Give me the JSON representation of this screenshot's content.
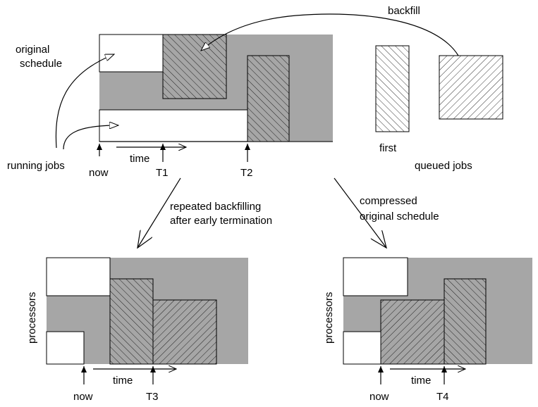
{
  "colors": {
    "gray": "#a6a6a6",
    "line": "#000000",
    "bg": "#ffffff"
  },
  "top": {
    "backfill": "backfill",
    "original_schedule_1": "original",
    "original_schedule_2": "schedule",
    "running_jobs": "running jobs",
    "now": "now",
    "time": "time",
    "t1": "T1",
    "t2": "T2",
    "first": "first",
    "queued_jobs": "queued jobs"
  },
  "branch_left": {
    "line1": "repeated backfilling",
    "line2": "after early termination"
  },
  "branch_right": {
    "line1": "compressed",
    "line2": "original schedule"
  },
  "bottom_left": {
    "processors": "processors",
    "now": "now",
    "time": "time",
    "t": "T3"
  },
  "bottom_right": {
    "processors": "processors",
    "now": "now",
    "time": "time",
    "t": "T4"
  }
}
